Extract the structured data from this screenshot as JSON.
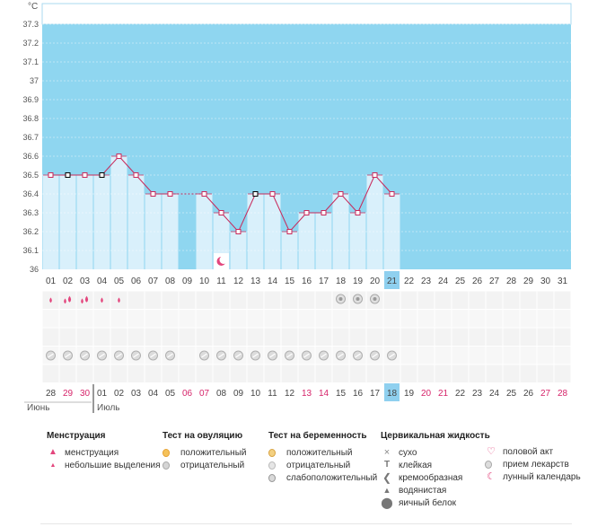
{
  "chart_data": {
    "type": "line",
    "unit": "°C",
    "ylim": [
      36.0,
      37.4
    ],
    "yticks": [
      "37.3",
      "37.2",
      "37.1",
      "37",
      "36.9",
      "36.8",
      "36.7",
      "36.6",
      "36.5",
      "36.4",
      "36.3",
      "36.2",
      "36.1",
      "36"
    ],
    "ytick_values": [
      37.3,
      37.2,
      37.1,
      37.0,
      36.9,
      36.8,
      36.7,
      36.6,
      36.5,
      36.4,
      36.3,
      36.2,
      36.1,
      36.0
    ],
    "cycle_days": [
      "01",
      "02",
      "03",
      "04",
      "05",
      "06",
      "07",
      "08",
      "09",
      "10",
      "11",
      "12",
      "13",
      "14",
      "15",
      "16",
      "17",
      "18",
      "19",
      "20",
      "21",
      "22",
      "23",
      "24",
      "25",
      "26",
      "27",
      "28",
      "29",
      "30",
      "31"
    ],
    "highlighted_cycle_day": "21",
    "temperatures": [
      36.5,
      36.5,
      36.5,
      36.5,
      36.6,
      36.5,
      36.4,
      36.4,
      null,
      36.4,
      36.3,
      36.2,
      36.4,
      36.4,
      36.2,
      36.3,
      36.3,
      36.4,
      36.3,
      36.5,
      36.4,
      null,
      null,
      null,
      null,
      null,
      null,
      null,
      null,
      null,
      null
    ],
    "black_markers": [
      1,
      3,
      12
    ],
    "dashed_segments": [
      [
        7,
        9
      ]
    ],
    "moon_day_index": 10,
    "menstruation_rows": {
      "heavy": [
        1,
        2
      ],
      "light": [
        0,
        3,
        4
      ]
    },
    "ovulation_negative_days": [
      17,
      18,
      19
    ],
    "medication_days": [
      0,
      1,
      2,
      3,
      4,
      5,
      6,
      7,
      9,
      10,
      11,
      12,
      13,
      14,
      15,
      16,
      17,
      18,
      19,
      20
    ],
    "calendar_dates": [
      "28",
      "29",
      "30",
      "01",
      "02",
      "03",
      "04",
      "05",
      "06",
      "07",
      "08",
      "09",
      "10",
      "11",
      "12",
      "13",
      "14",
      "15",
      "16",
      "17",
      "18",
      "19",
      "20",
      "21",
      "22",
      "23",
      "24",
      "25",
      "26",
      "27",
      "28"
    ],
    "calendar_red_indices": [
      1,
      2,
      8,
      9,
      15,
      16,
      22,
      23,
      29,
      30
    ],
    "calendar_highlight_index": 20,
    "months": {
      "left": "Июнь",
      "right": "Июль"
    }
  },
  "legend": {
    "menstruation": {
      "title": "Менструация",
      "items": [
        "менструация",
        "небольшие выделения"
      ]
    },
    "ovulation": {
      "title": "Тест на овуляцию",
      "items": [
        "положительный",
        "отрицательный"
      ]
    },
    "pregnancy": {
      "title": "Тест на беременность",
      "items": [
        "положительный",
        "отрицательный",
        "слабоположительный"
      ]
    },
    "cervical": {
      "title": "Цервикальная жидкость",
      "items": [
        "сухо",
        "клейкая",
        "кремообразная",
        "водянистая",
        "яичный белок"
      ]
    },
    "other": {
      "items": [
        "половой акт",
        "прием лекарств",
        "лунный календарь"
      ]
    }
  },
  "colors": {
    "sky": "#8fd6f0",
    "bar": "#d9f0fb",
    "bar_edge": "#a9d9ef",
    "line": "#c8285a",
    "highlight": "#8fd0ef",
    "red_date": "#d6246a",
    "grid_bg": "#f4f4f4"
  }
}
